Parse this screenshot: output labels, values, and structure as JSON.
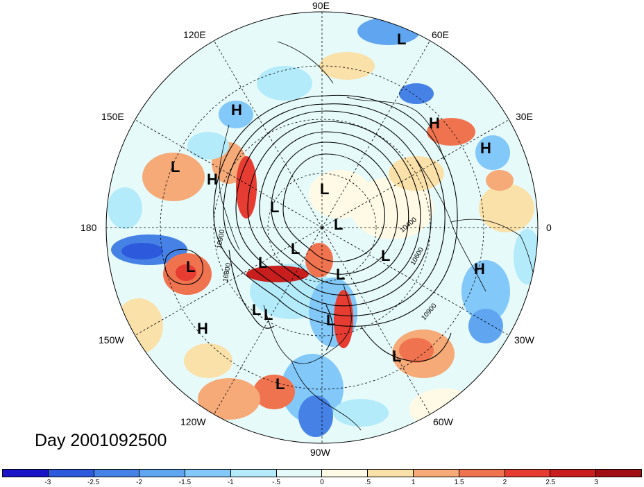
{
  "title": "Day 2001092500",
  "longitude_labels": [
    "90E",
    "60E",
    "30E",
    "0",
    "30W",
    "60W",
    "90W",
    "120W",
    "150W",
    "180",
    "150E",
    "120E"
  ],
  "pressure_markers": [
    "L",
    "H",
    "H",
    "H",
    "L",
    "H",
    "L",
    "L",
    "L",
    "L",
    "L",
    "L",
    "L",
    "L",
    "L",
    "L",
    "H",
    "L",
    "H",
    "L",
    "L"
  ],
  "contour_labels": [
    "10900",
    "10800",
    "10600",
    "10400",
    "10900"
  ],
  "colorbar": {
    "ticks": [
      "-3",
      "-2.5",
      "-2",
      "-1.5",
      "-1",
      "-.5",
      "0",
      ".5",
      "1",
      "1.5",
      "2",
      "2.5",
      "3"
    ],
    "colors": [
      "#1a14c8",
      "#2d5adc",
      "#4682e6",
      "#5fa5f0",
      "#82c8f8",
      "#b4ebfa",
      "#e6fafa",
      "#fffae6",
      "#fae1aa",
      "#f5aa78",
      "#f07350",
      "#e63c32",
      "#c81e1e",
      "#a00f14"
    ]
  }
}
